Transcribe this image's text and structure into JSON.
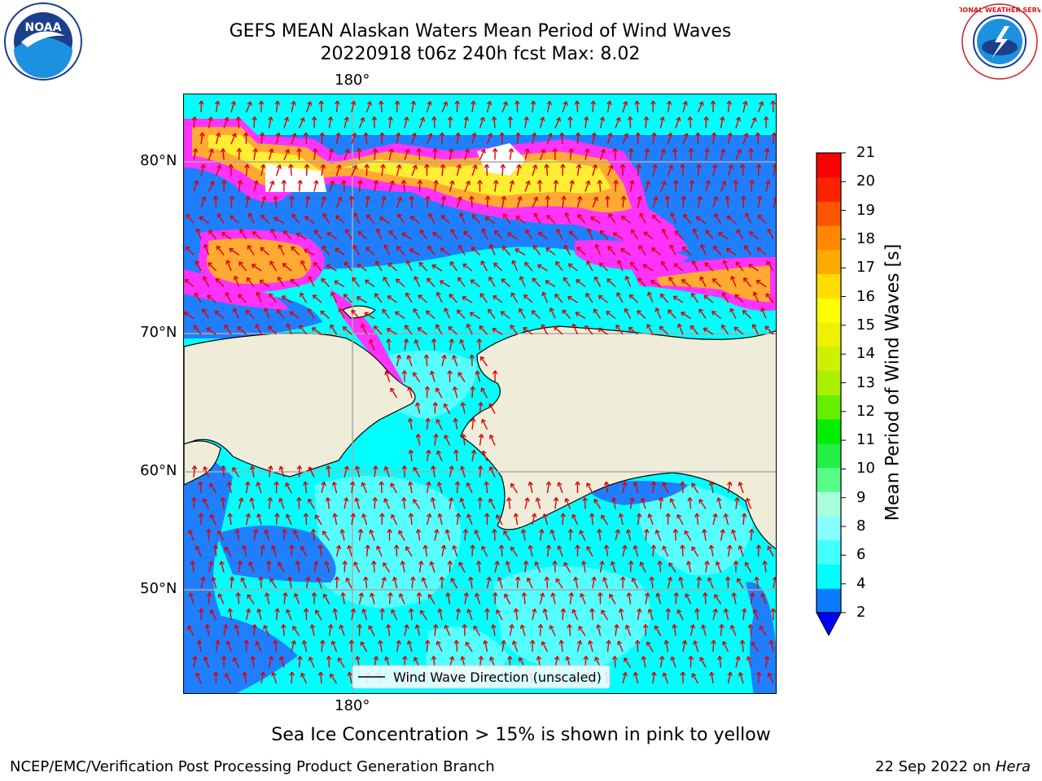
{
  "title": {
    "line1": "GEFS MEAN Alaskan Waters Mean Period of Wind Waves",
    "line2": "20220918 t06z 240h fcst   Max: 8.02"
  },
  "map": {
    "lon_label_top": "180°",
    "lon_label_bottom": "180°",
    "lat_labels": [
      "80°N",
      "70°N",
      "60°N",
      "50°N"
    ],
    "legend_label": "Wind Wave Direction (unscaled)",
    "arrow_color": "#e00000",
    "land_color": "#efedda",
    "ocean_colors": {
      "period_2_4": "#1f7fff",
      "period_4_6": "#00ffff",
      "period_6_8": "#55ffff"
    },
    "ice_colors": [
      "#ff33ff",
      "#ffaa33",
      "#ffee33"
    ]
  },
  "colorbar": {
    "label": "Mean Period of Wind Waves [s]",
    "ticks": [
      "2",
      "4",
      "6",
      "8",
      "9",
      "10",
      "11",
      "12",
      "13",
      "14",
      "15",
      "16",
      "17",
      "18",
      "19",
      "20",
      "21"
    ],
    "colors": [
      "#0b7bff",
      "#00ffff",
      "#44ffff",
      "#88ffff",
      "#aaffdd",
      "#55ff88",
      "#22ee44",
      "#00ee00",
      "#66ee00",
      "#aaee00",
      "#ccf000",
      "#eef000",
      "#ffff00",
      "#ffdd00",
      "#ffaa00",
      "#ff8800",
      "#ff5500",
      "#ff2200",
      "#ff0000"
    ],
    "under_color": "#0000ff"
  },
  "caption": "Sea Ice Concentration > 15% is shown in pink to yellow",
  "footer": {
    "left": "NCEP/EMC/Verification Post Processing Product Generation Branch",
    "right_date": "22 Sep 2022 on ",
    "right_host": "Hera"
  },
  "logos": {
    "left_text": "NOAA",
    "right_text": "NATIONAL WEATHER SERVICE"
  }
}
